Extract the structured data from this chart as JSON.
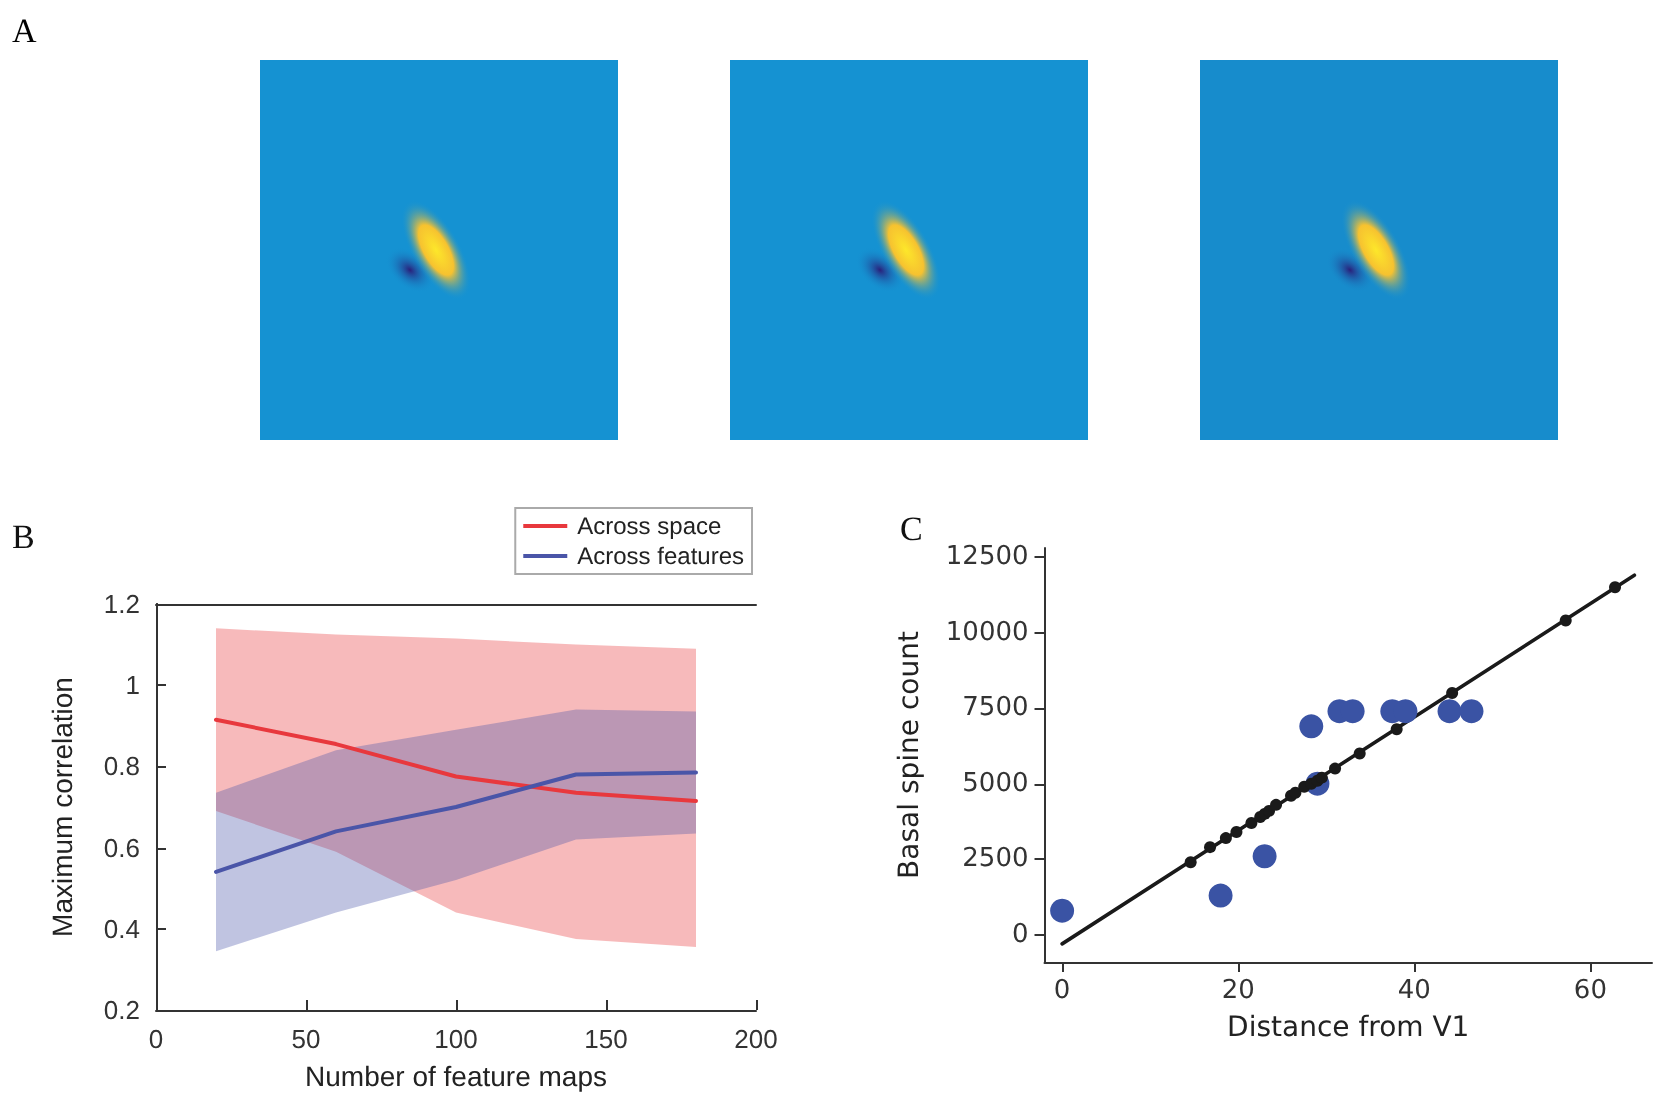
{
  "chart_data": [
    {
      "type": "line",
      "xlabel": "Number of feature maps",
      "ylabel": "Maximum correlation",
      "annotations": [
        "A",
        "B"
      ],
      "x": [
        20,
        60,
        100,
        140,
        180
      ],
      "xlim": [
        0,
        200
      ],
      "xticks": [
        0,
        50,
        100,
        150,
        200
      ],
      "ylim": [
        0.2,
        1.2
      ],
      "yticks": [
        0.2,
        0.4,
        0.6,
        0.8,
        1,
        1.2
      ],
      "grid": false,
      "legend": "top right",
      "marker": "none",
      "line_style": "solid",
      "series": [
        {
          "name": "Across space",
          "color": "#e8383d",
          "values": [
            0.915,
            0.855,
            0.775,
            0.735,
            0.715
          ],
          "lower": [
            0.69,
            0.59,
            0.44,
            0.375,
            0.355
          ],
          "upper": [
            1.14,
            1.125,
            1.115,
            1.1,
            1.09
          ]
        },
        {
          "name": "Across features",
          "color": "#4a55a8",
          "values": [
            0.54,
            0.64,
            0.7,
            0.78,
            0.785
          ],
          "lower": [
            0.345,
            0.44,
            0.52,
            0.62,
            0.635
          ],
          "upper": [
            0.735,
            0.84,
            0.89,
            0.94,
            0.935
          ]
        }
      ]
    },
    {
      "type": "scatter",
      "xlabel": "Distance from V1",
      "ylabel": "Basal spine count",
      "annotations": [
        "C"
      ],
      "xlim": [
        -2,
        67
      ],
      "xticks": [
        0,
        20,
        40,
        60
      ],
      "ylim": [
        -900,
        12800
      ],
      "yticks": [
        0,
        2500,
        5000,
        7500,
        10000,
        12500
      ],
      "grid": false,
      "legend": false,
      "marker": "circle",
      "series": [
        {
          "color": "#3a53a4",
          "x": [
            0,
            18,
            23,
            28.3,
            29,
            31.5,
            33,
            37.5,
            39,
            44,
            46.5
          ],
          "values": [
            800,
            1300,
            2600,
            6900,
            5000,
            7400,
            7400,
            7400,
            7400,
            7400,
            7400
          ]
        },
        {
          "type": "line",
          "marker": "none",
          "color": "#1a1a1a",
          "x": [
            0,
            65
          ],
          "values": [
            -300,
            11900
          ]
        },
        {
          "color": "#1a1a1a",
          "x": [
            14.6,
            16.8,
            18.6,
            19.8,
            21.5,
            22.5,
            23,
            23.5,
            24.3,
            26,
            26.5,
            27.5,
            28.3,
            29,
            29.5,
            31,
            33.8,
            38,
            44.3,
            57.2,
            62.8
          ],
          "values": [
            2400,
            2900,
            3200,
            3400,
            3700,
            3900,
            4000,
            4100,
            4300,
            4600,
            4700,
            4900,
            5000,
            5100,
            5200,
            5500,
            6000,
            6800,
            8000,
            10400,
            11500
          ]
        }
      ]
    }
  ]
}
